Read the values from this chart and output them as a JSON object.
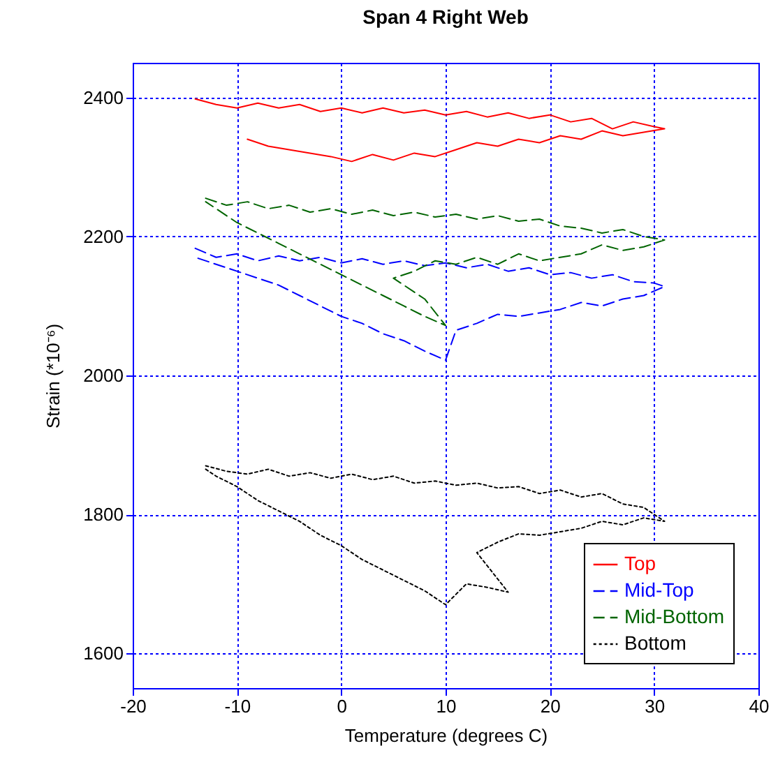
{
  "chart_data": {
    "type": "line",
    "title": "Span 4 Right Web",
    "xlabel": "Temperature (degrees C)",
    "ylabel": "Strain (*10⁻⁶)",
    "xlim": [
      -20,
      40
    ],
    "xticks": [
      -20,
      -10,
      0,
      10,
      20,
      30,
      40
    ],
    "ylim": [
      1550,
      2450
    ],
    "yticks": [
      1600,
      1800,
      2000,
      2200,
      2400
    ],
    "grid": true,
    "legend": "bottom right",
    "marker": "none",
    "series": [
      {
        "name": "Top",
        "color": "#ff0000",
        "line_style": "solid",
        "x": [
          -14,
          -12,
          -10,
          -8,
          -6,
          -4,
          -2,
          0,
          2,
          4,
          6,
          8,
          10,
          12,
          14,
          16,
          18,
          20,
          22,
          24,
          26,
          28,
          30,
          31,
          29,
          27,
          25,
          23,
          21,
          19,
          17,
          15,
          13,
          11,
          9,
          7,
          5,
          3,
          1,
          -1,
          -3,
          -5,
          -7,
          -9
        ],
        "values": [
          2398,
          2390,
          2385,
          2392,
          2385,
          2390,
          2380,
          2385,
          2378,
          2385,
          2378,
          2382,
          2375,
          2380,
          2372,
          2378,
          2370,
          2375,
          2365,
          2370,
          2355,
          2365,
          2358,
          2355,
          2350,
          2345,
          2352,
          2340,
          2345,
          2335,
          2340,
          2330,
          2335,
          2325,
          2315,
          2320,
          2310,
          2318,
          2308,
          2315,
          2320,
          2325,
          2330,
          2340
        ]
      },
      {
        "name": "Mid-Top",
        "color": "#0000ff",
        "line_style": "dashed",
        "x": [
          -14,
          -12,
          -10,
          -8,
          -6,
          -4,
          -2,
          0,
          2,
          4,
          6,
          8,
          10,
          12,
          14,
          16,
          18,
          20,
          22,
          24,
          26,
          28,
          30,
          31,
          29,
          27,
          25,
          23,
          21,
          19,
          17,
          15,
          13,
          11,
          10,
          8,
          6,
          4,
          2,
          0,
          -2,
          -4,
          -6,
          -8,
          -10,
          -12,
          -14
        ],
        "values": [
          2183,
          2170,
          2175,
          2165,
          2172,
          2165,
          2170,
          2162,
          2168,
          2160,
          2165,
          2158,
          2162,
          2155,
          2160,
          2150,
          2155,
          2145,
          2148,
          2140,
          2145,
          2135,
          2133,
          2128,
          2115,
          2110,
          2100,
          2105,
          2095,
          2090,
          2085,
          2088,
          2075,
          2065,
          2022,
          2035,
          2050,
          2060,
          2075,
          2085,
          2100,
          2115,
          2130,
          2140,
          2150,
          2160,
          2170
        ]
      },
      {
        "name": "Mid-Bottom",
        "color": "#006400",
        "line_style": "dashed",
        "x": [
          -13,
          -11,
          -9,
          -7,
          -5,
          -3,
          -1,
          1,
          3,
          5,
          7,
          9,
          11,
          13,
          15,
          17,
          19,
          21,
          23,
          25,
          27,
          29,
          31,
          29,
          27,
          25,
          23,
          21,
          19,
          17,
          15,
          13,
          11,
          9,
          7,
          5,
          8,
          10,
          8,
          6,
          4,
          2,
          0,
          -2,
          -4,
          -6,
          -8,
          -10,
          -12,
          -13
        ],
        "values": [
          2255,
          2245,
          2250,
          2240,
          2245,
          2235,
          2240,
          2232,
          2238,
          2230,
          2235,
          2228,
          2232,
          2225,
          2230,
          2222,
          2225,
          2215,
          2212,
          2205,
          2210,
          2200,
          2195,
          2185,
          2180,
          2188,
          2175,
          2170,
          2165,
          2175,
          2160,
          2170,
          2160,
          2165,
          2150,
          2140,
          2110,
          2072,
          2085,
          2100,
          2115,
          2130,
          2145,
          2160,
          2175,
          2190,
          2205,
          2220,
          2240,
          2250
        ]
      },
      {
        "name": "Bottom",
        "color": "#000000",
        "line_style": "dotted",
        "x": [
          -13,
          -11,
          -9,
          -7,
          -5,
          -3,
          -1,
          1,
          3,
          5,
          7,
          9,
          11,
          13,
          15,
          17,
          19,
          21,
          23,
          25,
          27,
          29,
          31,
          29,
          27,
          25,
          23,
          21,
          19,
          17,
          15,
          13,
          16,
          14,
          12,
          10,
          8,
          6,
          4,
          2,
          0,
          -2,
          -4,
          -6,
          -8,
          -10,
          -12,
          -13
        ],
        "values": [
          1870,
          1862,
          1858,
          1865,
          1855,
          1860,
          1852,
          1858,
          1850,
          1855,
          1845,
          1848,
          1842,
          1845,
          1838,
          1840,
          1830,
          1835,
          1825,
          1830,
          1815,
          1810,
          1790,
          1795,
          1785,
          1790,
          1780,
          1775,
          1770,
          1772,
          1760,
          1745,
          1688,
          1695,
          1700,
          1670,
          1690,
          1705,
          1720,
          1735,
          1755,
          1770,
          1790,
          1805,
          1820,
          1840,
          1855,
          1865
        ]
      }
    ]
  }
}
